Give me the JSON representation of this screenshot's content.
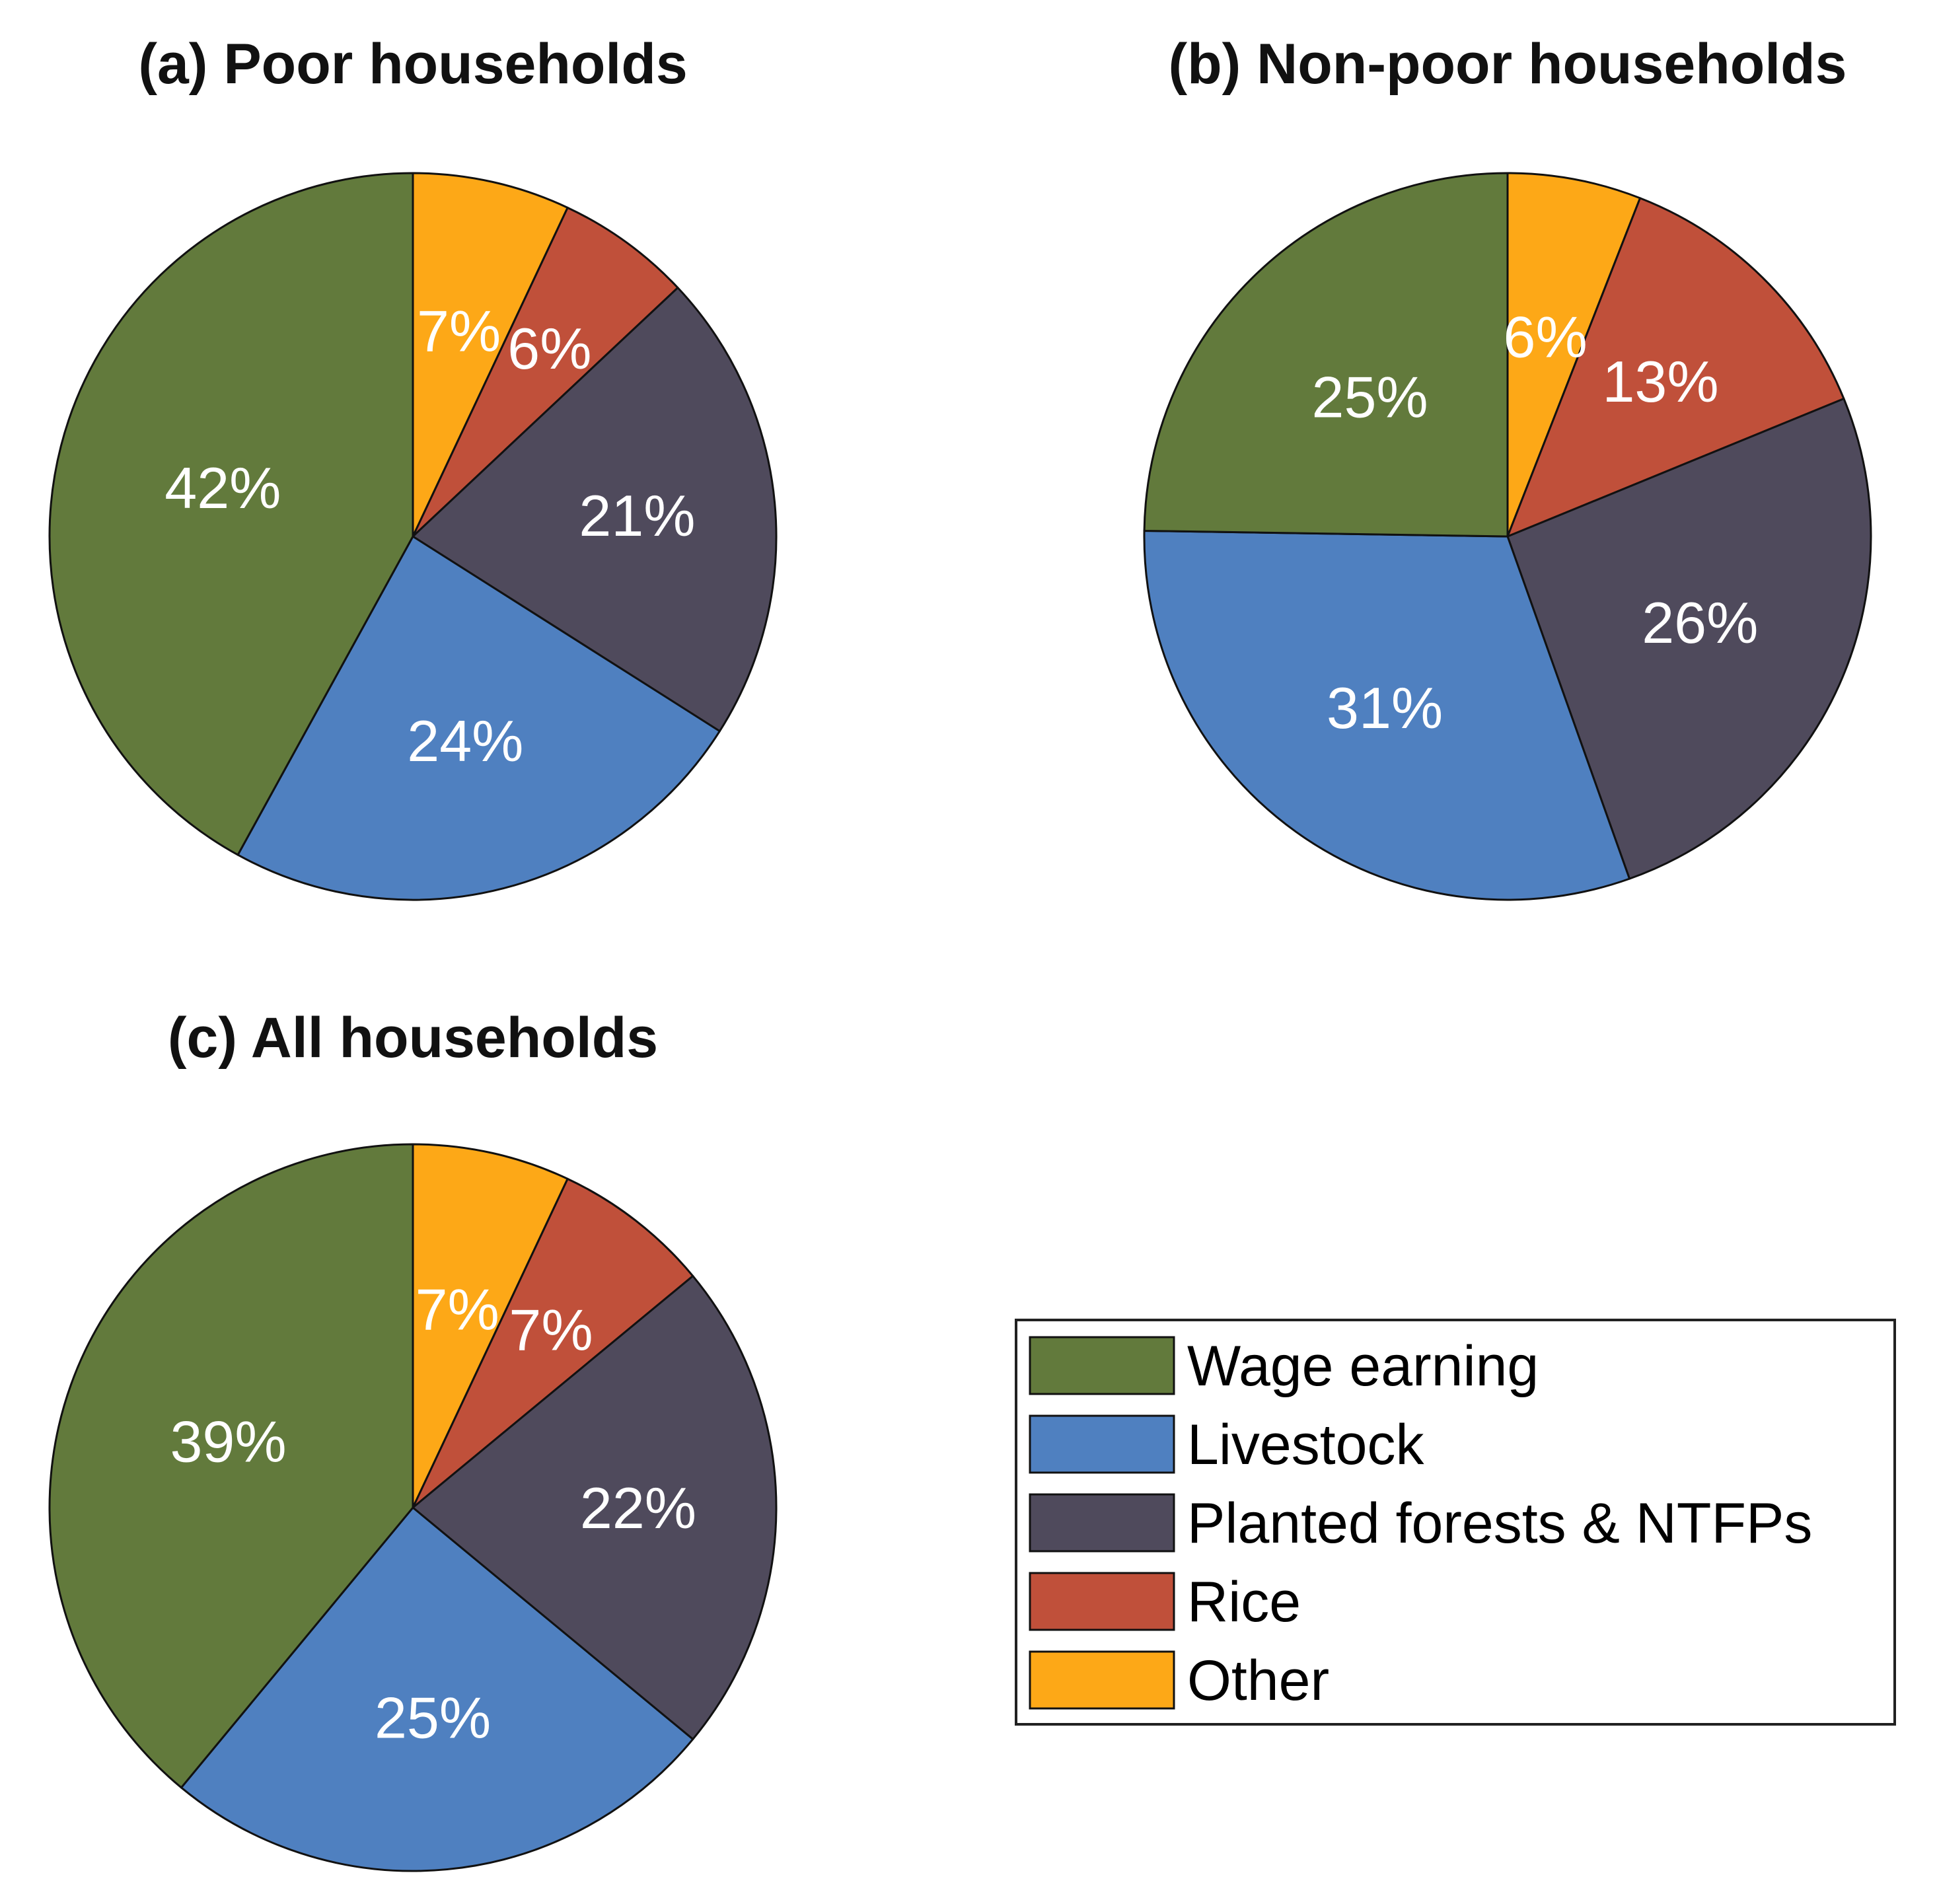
{
  "colors": {
    "Wage earning": "#627a3c",
    "Livestock": "#4f80c0",
    "Planted forests & NTFPs": "#4f4a5c",
    "Rice": "#c0503a",
    "Other": "#fda817"
  },
  "chart_data": [
    {
      "type": "pie",
      "title": "(a) Poor households",
      "categories": [
        "Other",
        "Rice",
        "Planted forests & NTFPs",
        "Livestock",
        "Wage earning"
      ],
      "values": [
        7,
        6,
        21,
        24,
        42
      ],
      "labels": [
        "7%",
        "6%",
        "21%",
        "24%",
        "42%"
      ]
    },
    {
      "type": "pie",
      "title": "(b) Non-poor households",
      "categories": [
        "Other",
        "Rice",
        "Planted forests & NTFPs",
        "Livestock",
        "Wage earning"
      ],
      "values": [
        6,
        13,
        26,
        31,
        25
      ],
      "labels": [
        "6%",
        "13%",
        "26%",
        "31%",
        "25%"
      ]
    },
    {
      "type": "pie",
      "title": "(c) All households",
      "categories": [
        "Other",
        "Rice",
        "Planted forests & NTFPs",
        "Livestock",
        "Wage earning"
      ],
      "values": [
        7,
        7,
        22,
        25,
        39
      ],
      "labels": [
        "7%",
        "7%",
        "22%",
        "25%",
        "39%"
      ]
    }
  ],
  "legend": {
    "items": [
      "Wage earning",
      "Livestock",
      "Planted forests & NTFPs",
      "Rice",
      "Other"
    ]
  }
}
